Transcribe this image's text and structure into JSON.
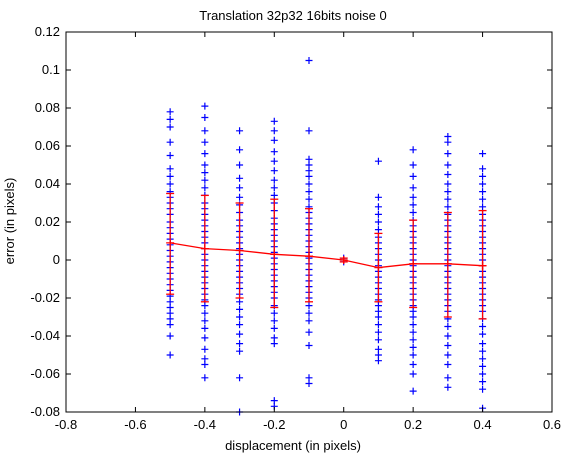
{
  "chart_data": {
    "type": "scatter",
    "title": "Translation 32p32 16bits noise 0",
    "xlabel": "displacement (in pixels)",
    "ylabel": "error (in pixels)",
    "xlim": [
      -0.8,
      0.6
    ],
    "ylim": [
      -0.08,
      0.12
    ],
    "grid": false,
    "xticks": [
      -0.8,
      -0.6,
      -0.4,
      -0.2,
      0,
      0.2,
      0.4,
      0.6
    ],
    "xtick_labels": [
      "-0.8",
      "-0.6",
      "-0.4",
      "-0.2",
      "0",
      "0.2",
      "0.4",
      "0.6"
    ],
    "yticks": [
      -0.08,
      -0.06,
      -0.04,
      -0.02,
      0,
      0.02,
      0.04,
      0.06,
      0.08,
      0.1,
      0.12
    ],
    "ytick_labels": [
      "-0.08",
      "-0.06",
      "-0.04",
      "-0.02",
      "0",
      "0.02",
      "0.04",
      "0.06",
      "0.08",
      "0.1",
      "0.12"
    ],
    "colors": {
      "samples": "#0000ff",
      "mean": "#ff0000",
      "errorbar": "#ff0000",
      "axes": "#000000"
    },
    "samples": {
      "name": "",
      "marker": "plus",
      "points": [
        {
          "x": -0.5,
          "ys": [
            0.078,
            0.074,
            0.07,
            0.062,
            0.055,
            0.048,
            0.044,
            0.04,
            0.036,
            0.033,
            0.03,
            0.027,
            0.024,
            0.02,
            0.017,
            0.014,
            0.011,
            0.008,
            0.005,
            0.002,
            -0.001,
            -0.004,
            -0.007,
            -0.01,
            -0.013,
            -0.016,
            -0.019,
            -0.022,
            -0.025,
            -0.028,
            -0.031,
            -0.034,
            -0.04,
            -0.05
          ]
        },
        {
          "x": -0.4,
          "ys": [
            0.081,
            0.075,
            0.068,
            0.062,
            0.056,
            0.05,
            0.046,
            0.042,
            0.038,
            0.034,
            0.03,
            0.027,
            0.024,
            0.021,
            0.018,
            0.015,
            0.012,
            0.009,
            0.006,
            0.003,
            0.0,
            -0.003,
            -0.006,
            -0.009,
            -0.012,
            -0.015,
            -0.018,
            -0.021,
            -0.024,
            -0.028,
            -0.032,
            -0.036,
            -0.041,
            -0.047,
            -0.052,
            -0.055,
            -0.062
          ]
        },
        {
          "x": -0.3,
          "ys": [
            0.068,
            0.058,
            0.05,
            0.043,
            0.038,
            0.033,
            0.029,
            0.025,
            0.021,
            0.018,
            0.015,
            0.012,
            0.009,
            0.006,
            0.003,
            0.0,
            -0.003,
            -0.006,
            -0.009,
            -0.012,
            -0.015,
            -0.018,
            -0.022,
            -0.026,
            -0.03,
            -0.034,
            -0.039,
            -0.044,
            -0.048,
            -0.062,
            -0.08
          ]
        },
        {
          "x": -0.2,
          "ys": [
            0.073,
            0.068,
            0.063,
            0.057,
            0.052,
            0.047,
            0.042,
            0.038,
            0.034,
            0.03,
            0.026,
            0.022,
            0.019,
            0.016,
            0.013,
            0.01,
            0.007,
            0.004,
            0.001,
            -0.002,
            -0.005,
            -0.008,
            -0.011,
            -0.014,
            -0.017,
            -0.02,
            -0.024,
            -0.028,
            -0.032,
            -0.036,
            -0.041,
            -0.044,
            -0.074,
            -0.077
          ]
        },
        {
          "x": -0.1,
          "ys": [
            0.105,
            0.068,
            0.053,
            0.05,
            0.047,
            0.044,
            0.04,
            0.036,
            0.032,
            0.028,
            0.025,
            0.022,
            0.019,
            0.016,
            0.013,
            0.01,
            0.007,
            0.004,
            0.001,
            -0.002,
            -0.005,
            -0.008,
            -0.011,
            -0.014,
            -0.017,
            -0.02,
            -0.024,
            -0.028,
            -0.032,
            -0.038,
            -0.045,
            -0.062,
            -0.065
          ]
        },
        {
          "x": 0,
          "ys": [
            0.001,
            0.0,
            -0.001
          ]
        },
        {
          "x": 0.1,
          "ys": [
            0.052,
            0.033,
            0.028,
            0.024,
            0.02,
            0.016,
            0.012,
            0.009,
            0.006,
            0.003,
            0.0,
            -0.003,
            -0.006,
            -0.009,
            -0.012,
            -0.015,
            -0.018,
            -0.021,
            -0.024,
            -0.027,
            -0.03,
            -0.034,
            -0.038,
            -0.042,
            -0.047,
            -0.05,
            -0.053
          ]
        },
        {
          "x": 0.2,
          "ys": [
            0.058,
            0.05,
            0.044,
            0.038,
            0.033,
            0.029,
            0.025,
            0.021,
            0.018,
            0.015,
            0.012,
            0.009,
            0.006,
            0.003,
            0.0,
            -0.003,
            -0.006,
            -0.009,
            -0.012,
            -0.015,
            -0.018,
            -0.021,
            -0.024,
            -0.027,
            -0.03,
            -0.034,
            -0.038,
            -0.042,
            -0.046,
            -0.05,
            -0.055,
            -0.06,
            -0.069
          ]
        },
        {
          "x": 0.3,
          "ys": [
            0.065,
            0.062,
            0.056,
            0.05,
            0.045,
            0.04,
            0.036,
            0.032,
            0.028,
            0.024,
            0.021,
            0.018,
            0.015,
            0.012,
            0.009,
            0.006,
            0.003,
            0.0,
            -0.003,
            -0.006,
            -0.009,
            -0.012,
            -0.015,
            -0.018,
            -0.021,
            -0.024,
            -0.027,
            -0.031,
            -0.035,
            -0.04,
            -0.045,
            -0.05,
            -0.055,
            -0.062,
            -0.067
          ]
        },
        {
          "x": 0.4,
          "ys": [
            0.056,
            0.048,
            0.044,
            0.04,
            0.036,
            0.032,
            0.028,
            0.024,
            0.021,
            0.018,
            0.015,
            0.012,
            0.009,
            0.006,
            0.003,
            0.0,
            -0.003,
            -0.006,
            -0.009,
            -0.012,
            -0.015,
            -0.018,
            -0.021,
            -0.024,
            -0.027,
            -0.031,
            -0.035,
            -0.039,
            -0.044,
            -0.048,
            -0.052,
            -0.056,
            -0.06,
            -0.064,
            -0.068,
            -0.078
          ]
        }
      ]
    },
    "mean_series": {
      "name": "",
      "x": [
        -0.5,
        -0.4,
        -0.3,
        -0.2,
        -0.1,
        0,
        0.1,
        0.2,
        0.3,
        0.4
      ],
      "y": [
        0.009,
        0.006,
        0.005,
        0.003,
        0.002,
        0.0,
        -0.004,
        -0.002,
        -0.002,
        -0.003
      ]
    },
    "error_bars": [
      {
        "x": -0.5,
        "low": -0.018,
        "high": 0.035
      },
      {
        "x": -0.4,
        "low": -0.022,
        "high": 0.034
      },
      {
        "x": -0.3,
        "low": -0.02,
        "high": 0.03
      },
      {
        "x": -0.2,
        "low": -0.025,
        "high": 0.032
      },
      {
        "x": -0.1,
        "low": -0.022,
        "high": 0.027
      },
      {
        "x": 0,
        "low": -0.001,
        "high": 0.001
      },
      {
        "x": 0.1,
        "low": -0.022,
        "high": 0.014
      },
      {
        "x": 0.2,
        "low": -0.025,
        "high": 0.021
      },
      {
        "x": 0.3,
        "low": -0.03,
        "high": 0.025
      },
      {
        "x": 0.4,
        "low": -0.031,
        "high": 0.026
      }
    ]
  }
}
